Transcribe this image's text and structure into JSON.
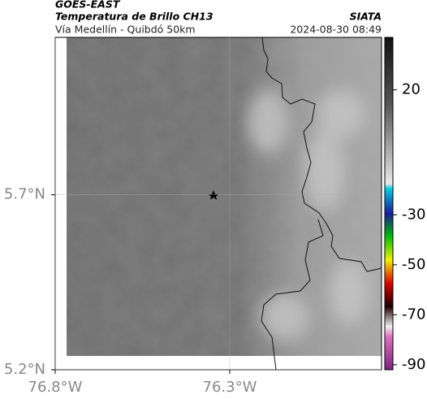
{
  "header": {
    "satellite": "GOES-EAST",
    "product": "Temperatura de Brillo CH13",
    "region": "Vía Medellín - Quibdó 50km",
    "source": "SIATA",
    "timestamp": "2024-08-30 08:49"
  },
  "map": {
    "xlim": [
      -76.8,
      -75.865
    ],
    "ylim": [
      5.2,
      6.15
    ],
    "xticks": [
      {
        "value": -76.8,
        "label": "76.8°W"
      },
      {
        "value": -76.3,
        "label": "76.3°W"
      }
    ],
    "yticks": [
      {
        "value": 5.2,
        "label": "5.2°N"
      },
      {
        "value": 5.7,
        "label": "5.7°N"
      }
    ],
    "grid": true
  },
  "colorbar": {
    "lim": [
      -92,
      41
    ],
    "ticks": [
      20,
      -30,
      -50,
      -70,
      -90
    ]
  }
}
